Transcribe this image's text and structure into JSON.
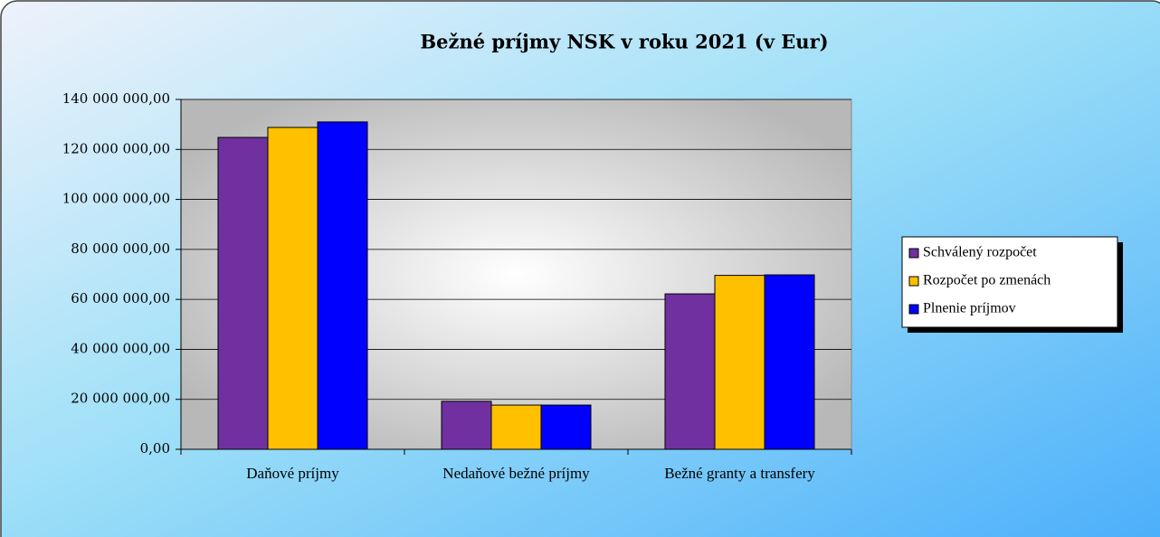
{
  "chart_data": {
    "type": "bar",
    "title": "Bežné príjmy NSK v roku 2021 (v Eur)",
    "categories": [
      "Daňové príjmy",
      "Nedaňové bežné príjmy",
      "Bežné granty a transfery"
    ],
    "series": [
      {
        "name": "Schválený rozpočet",
        "color": "#7030a0",
        "values": [
          124800000,
          19200000,
          62200000
        ]
      },
      {
        "name": "Rozpočet po zmenách",
        "color": "#ffc000",
        "values": [
          128800000,
          17700000,
          69600000
        ]
      },
      {
        "name": "Plnenie príjmov",
        "color": "#0000ff",
        "values": [
          131000000,
          17700000,
          69800000
        ]
      }
    ],
    "ylim": [
      0,
      140000000
    ],
    "yticks": [
      {
        "value": 0,
        "label": "0,00"
      },
      {
        "value": 20000000,
        "label": "20 000 000,00"
      },
      {
        "value": 40000000,
        "label": "40 000 000,00"
      },
      {
        "value": 60000000,
        "label": "60 000 000,00"
      },
      {
        "value": 80000000,
        "label": "80 000 000,00"
      },
      {
        "value": 100000000,
        "label": "100 000 000,00"
      },
      {
        "value": 120000000,
        "label": "120 000 000,00"
      },
      {
        "value": 140000000,
        "label": "140 000 000,00"
      }
    ],
    "grid": true,
    "legend": "right"
  }
}
